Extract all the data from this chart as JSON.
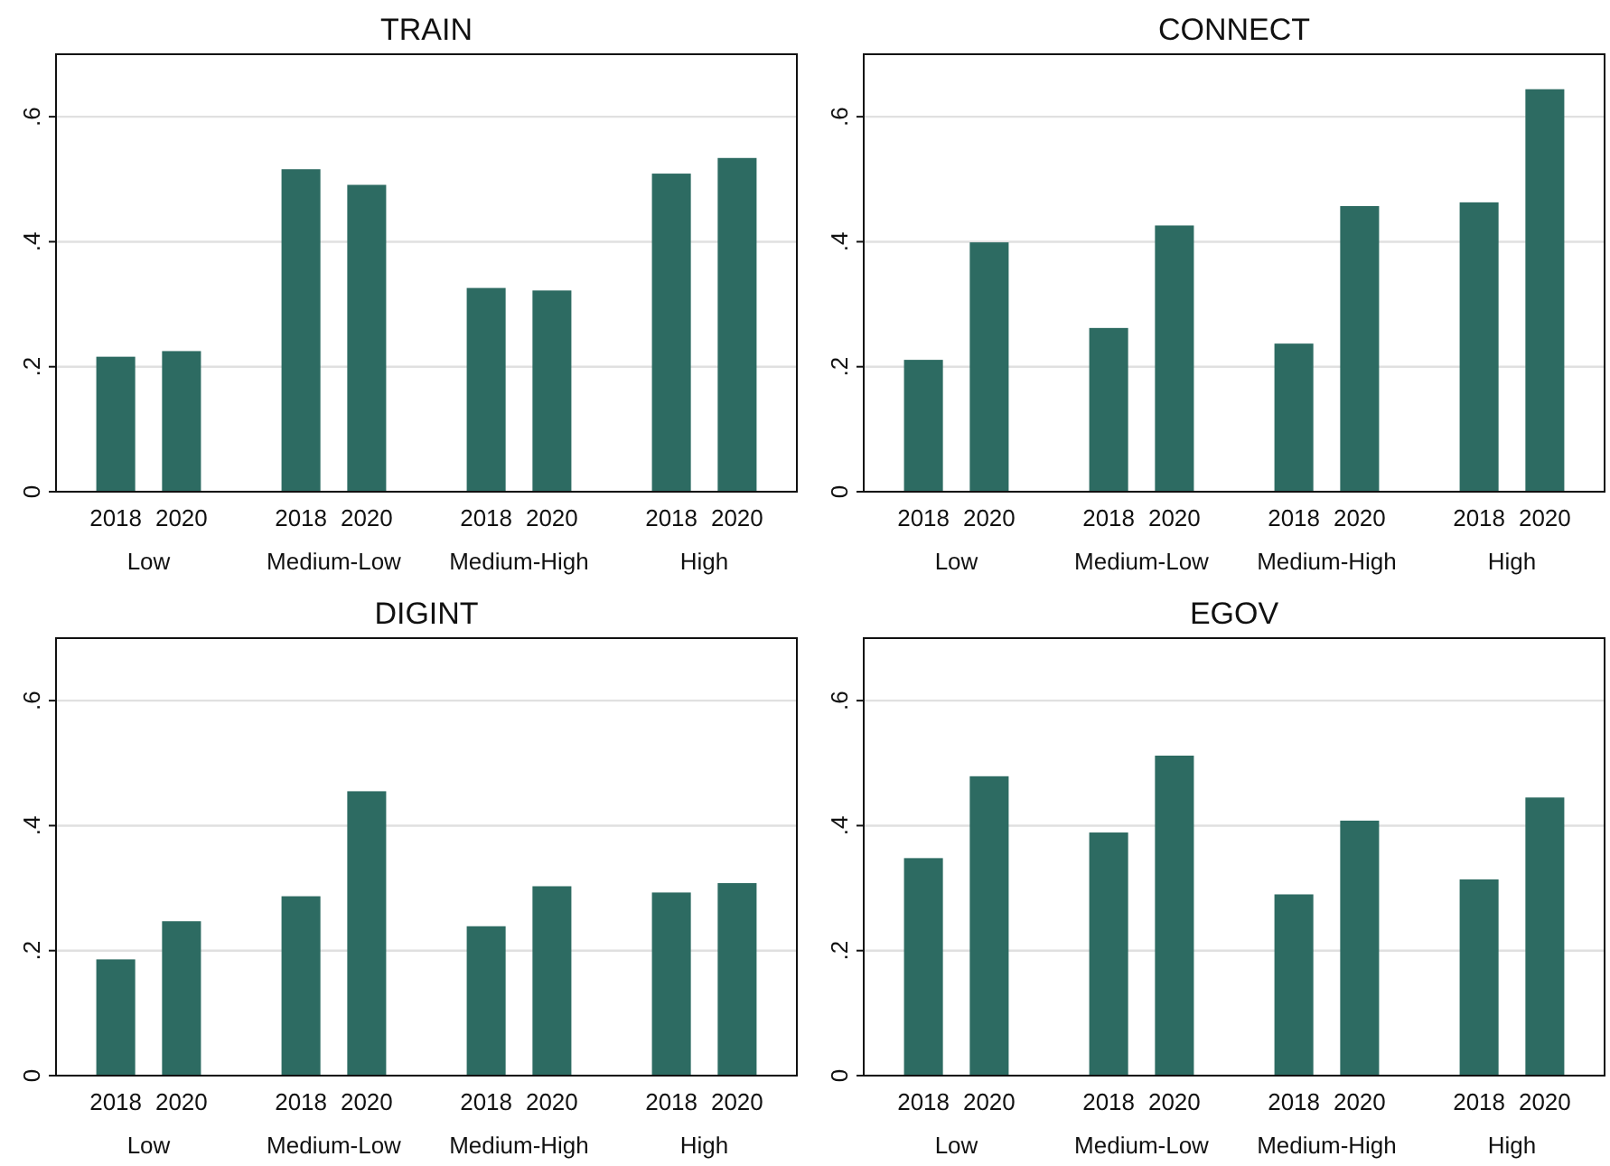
{
  "chart_data": [
    {
      "type": "bar",
      "title": "TRAIN",
      "categories": [
        "Low",
        "Medium-Low",
        "Medium-High",
        "High"
      ],
      "ylim": [
        0,
        0.7
      ],
      "yticks": [
        {
          "value": 0,
          "label": "0"
        },
        {
          "value": 0.2,
          "label": ".2"
        },
        {
          "value": 0.4,
          "label": ".4"
        },
        {
          "value": 0.6,
          "label": ".6"
        }
      ],
      "grid": "y",
      "series": [
        {
          "name": "2018",
          "color": "#2d6b62",
          "values": [
            0.216,
            0.516,
            0.326,
            0.509
          ]
        },
        {
          "name": "2020",
          "color": "#2d6b62",
          "values": [
            0.225,
            0.491,
            0.322,
            0.534
          ]
        }
      ]
    },
    {
      "type": "bar",
      "title": "CONNECT",
      "categories": [
        "Low",
        "Medium-Low",
        "Medium-High",
        "High"
      ],
      "ylim": [
        0,
        0.7
      ],
      "yticks": [
        {
          "value": 0,
          "label": "0"
        },
        {
          "value": 0.2,
          "label": ".2"
        },
        {
          "value": 0.4,
          "label": ".4"
        },
        {
          "value": 0.6,
          "label": ".6"
        }
      ],
      "grid": "y",
      "series": [
        {
          "name": "2018",
          "color": "#2d6b62",
          "values": [
            0.211,
            0.262,
            0.237,
            0.463
          ]
        },
        {
          "name": "2020",
          "color": "#2d6b62",
          "values": [
            0.399,
            0.426,
            0.457,
            0.644
          ]
        }
      ]
    },
    {
      "type": "bar",
      "title": "DIGINT",
      "categories": [
        "Low",
        "Medium-Low",
        "Medium-High",
        "High"
      ],
      "ylim": [
        0,
        0.7
      ],
      "yticks": [
        {
          "value": 0,
          "label": "0"
        },
        {
          "value": 0.2,
          "label": ".2"
        },
        {
          "value": 0.4,
          "label": ".4"
        },
        {
          "value": 0.6,
          "label": ".6"
        }
      ],
      "grid": "y",
      "series": [
        {
          "name": "2018",
          "color": "#2d6b62",
          "values": [
            0.186,
            0.287,
            0.239,
            0.293
          ]
        },
        {
          "name": "2020",
          "color": "#2d6b62",
          "values": [
            0.247,
            0.455,
            0.303,
            0.308
          ]
        }
      ]
    },
    {
      "type": "bar",
      "title": "EGOV",
      "categories": [
        "Low",
        "Medium-Low",
        "Medium-High",
        "High"
      ],
      "ylim": [
        0,
        0.7
      ],
      "yticks": [
        {
          "value": 0,
          "label": "0"
        },
        {
          "value": 0.2,
          "label": ".2"
        },
        {
          "value": 0.4,
          "label": ".4"
        },
        {
          "value": 0.6,
          "label": ".6"
        }
      ],
      "grid": "y",
      "series": [
        {
          "name": "2018",
          "color": "#2d6b62",
          "values": [
            0.348,
            0.389,
            0.29,
            0.314
          ]
        },
        {
          "name": "2020",
          "color": "#2d6b62",
          "values": [
            0.479,
            0.512,
            0.408,
            0.445
          ]
        }
      ]
    }
  ]
}
